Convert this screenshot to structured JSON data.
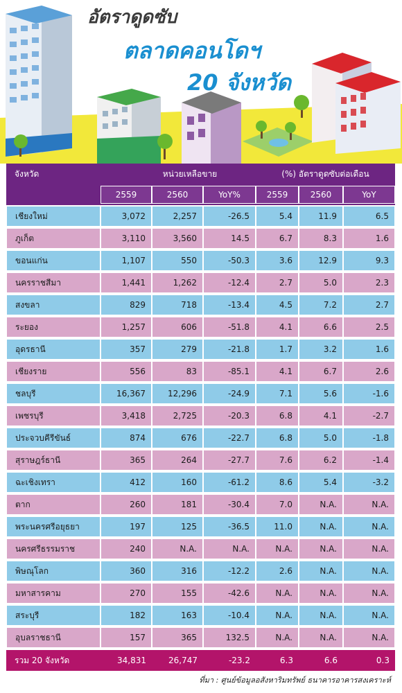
{
  "title": {
    "line1": "อัตราดูดซับ",
    "line2": "ตลาดคอนโดฯ",
    "line3": "20 จังหวัด"
  },
  "colors": {
    "header_purple": "#6d2582",
    "row_blue": "#8fcbe8",
    "row_pink": "#d9a7c9",
    "total_magenta": "#b3146a",
    "title_blue": "#1a8fd0"
  },
  "table": {
    "header": {
      "province": "จังหวัด",
      "unsold_group": "หน่วยเหลือขาย",
      "absorption_group": "(%) อัตราดูดซับต่อเดือน",
      "unsold_cols": [
        "2559",
        "2560",
        "YoY%"
      ],
      "absorption_cols": [
        "2559",
        "2560",
        "YoY"
      ]
    },
    "rows": [
      {
        "province": "เชียงใหม่",
        "u2559": "3,072",
        "u2560": "2,257",
        "uyoy": "-26.5",
        "a2559": "5.4",
        "a2560": "11.9",
        "ayoy": "6.5"
      },
      {
        "province": "ภูเก็ต",
        "u2559": "3,110",
        "u2560": "3,560",
        "uyoy": "14.5",
        "a2559": "6.7",
        "a2560": "8.3",
        "ayoy": "1.6"
      },
      {
        "province": "ขอนแก่น",
        "u2559": "1,107",
        "u2560": "550",
        "uyoy": "-50.3",
        "a2559": "3.6",
        "a2560": "12.9",
        "ayoy": "9.3"
      },
      {
        "province": "นครราชสีมา",
        "u2559": "1,441",
        "u2560": "1,262",
        "uyoy": "-12.4",
        "a2559": "2.7",
        "a2560": "5.0",
        "ayoy": "2.3"
      },
      {
        "province": "สงขลา",
        "u2559": "829",
        "u2560": "718",
        "uyoy": "-13.4",
        "a2559": "4.5",
        "a2560": "7.2",
        "ayoy": "2.7"
      },
      {
        "province": "ระยอง",
        "u2559": "1,257",
        "u2560": "606",
        "uyoy": "-51.8",
        "a2559": "4.1",
        "a2560": "6.6",
        "ayoy": "2.5"
      },
      {
        "province": "อุดรธานี",
        "u2559": "357",
        "u2560": "279",
        "uyoy": "-21.8",
        "a2559": "1.7",
        "a2560": "3.2",
        "ayoy": "1.6"
      },
      {
        "province": "เชียงราย",
        "u2559": "556",
        "u2560": "83",
        "uyoy": "-85.1",
        "a2559": "4.1",
        "a2560": "6.7",
        "ayoy": "2.6"
      },
      {
        "province": "ชลบุรี",
        "u2559": "16,367",
        "u2560": "12,296",
        "uyoy": "-24.9",
        "a2559": "7.1",
        "a2560": "5.6",
        "ayoy": "-1.6"
      },
      {
        "province": "เพชรบุรี",
        "u2559": "3,418",
        "u2560": "2,725",
        "uyoy": "-20.3",
        "a2559": "6.8",
        "a2560": "4.1",
        "ayoy": "-2.7"
      },
      {
        "province": "ประจวบคีรีขันธ์",
        "u2559": "874",
        "u2560": "676",
        "uyoy": "-22.7",
        "a2559": "6.8",
        "a2560": "5.0",
        "ayoy": "-1.8"
      },
      {
        "province": "สุราษฎร์ธานี",
        "u2559": "365",
        "u2560": "264",
        "uyoy": "-27.7",
        "a2559": "7.6",
        "a2560": "6.2",
        "ayoy": "-1.4"
      },
      {
        "province": "ฉะเชิงเทรา",
        "u2559": "412",
        "u2560": "160",
        "uyoy": "-61.2",
        "a2559": "8.6",
        "a2560": "5.4",
        "ayoy": "-3.2"
      },
      {
        "province": "ตาก",
        "u2559": "260",
        "u2560": "181",
        "uyoy": "-30.4",
        "a2559": "7.0",
        "a2560": "N.A.",
        "ayoy": "N.A."
      },
      {
        "province": "พระนครศรีอยุธยา",
        "u2559": "197",
        "u2560": "125",
        "uyoy": "-36.5",
        "a2559": "11.0",
        "a2560": "N.A.",
        "ayoy": "N.A."
      },
      {
        "province": "นครศรีธรรมราช",
        "u2559": "240",
        "u2560": "N.A.",
        "uyoy": "N.A.",
        "a2559": "N.A.",
        "a2560": "N.A.",
        "ayoy": "N.A."
      },
      {
        "province": "พิษณุโลก",
        "u2559": "360",
        "u2560": "316",
        "uyoy": "-12.2",
        "a2559": "2.6",
        "a2560": "N.A.",
        "ayoy": "N.A."
      },
      {
        "province": "มหาสารคาม",
        "u2559": "270",
        "u2560": "155",
        "uyoy": "-42.6",
        "a2559": "N.A.",
        "a2560": "N.A.",
        "ayoy": "N.A."
      },
      {
        "province": "สระบุรี",
        "u2559": "182",
        "u2560": "163",
        "uyoy": "-10.4",
        "a2559": "N.A.",
        "a2560": "N.A.",
        "ayoy": "N.A."
      },
      {
        "province": "อุบลราชธานี",
        "u2559": "157",
        "u2560": "365",
        "uyoy": "132.5",
        "a2559": "N.A.",
        "a2560": "N.A.",
        "ayoy": "N.A."
      }
    ],
    "total": {
      "province": "รวม 20 จังหวัด",
      "u2559": "34,831",
      "u2560": "26,747",
      "uyoy": "-23.2",
      "a2559": "6.3",
      "a2560": "6.6",
      "ayoy": "0.3"
    }
  },
  "source": "ที่มา : ศูนย์ข้อมูลอสังหาริมทรัพย์ ธนาคารอาคารสงเคราะห์"
}
